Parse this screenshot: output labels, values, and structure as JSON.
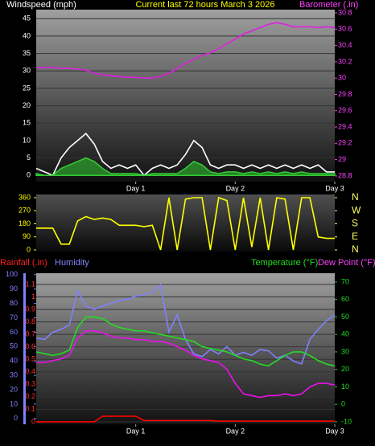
{
  "chart_data": [
    {
      "type": "line",
      "title": "Current last 72 hours March 3 2026",
      "y_label": "Windspeed (mph)",
      "y2_label": "Barometer (.in)",
      "x": [
        0,
        2,
        4,
        6,
        8,
        10,
        12,
        14,
        16,
        18,
        20,
        22,
        24,
        26,
        28,
        30,
        32,
        34,
        36,
        38,
        40,
        42,
        44,
        46,
        48,
        50,
        52,
        54,
        56,
        58,
        60,
        62,
        64,
        66,
        68,
        70,
        72
      ],
      "xlim": [
        0,
        72
      ],
      "xticks": [
        {
          "value": 24,
          "label": "Day 1"
        },
        {
          "value": 48,
          "label": "Day 2"
        },
        {
          "value": 72,
          "label": "Day 3"
        }
      ],
      "ylim": [
        -1.8,
        47.6
      ],
      "yticks": [
        0,
        5,
        10,
        15,
        20,
        25,
        30,
        35,
        40,
        45
      ],
      "y2lim": [
        28.73,
        30.84
      ],
      "y2ticks": [
        28.8,
        29,
        29.2,
        29.4,
        29.6,
        29.8,
        30,
        30.2,
        30.4,
        30.6,
        30.8
      ],
      "grid": true,
      "series": [
        {
          "color": "#ffffff",
          "values": [
            2,
            1,
            0,
            5,
            8,
            10,
            12,
            9,
            4,
            2,
            3,
            2,
            3,
            0,
            2,
            3,
            2,
            3,
            6,
            10,
            8,
            3,
            2,
            3,
            3,
            2,
            3,
            2,
            3,
            2,
            3,
            2,
            3,
            2,
            3,
            1,
            1
          ]
        },
        {
          "color": "#33cc33",
          "area": true,
          "values": [
            0.5,
            0,
            0,
            2,
            3,
            4,
            5,
            4,
            2,
            0.5,
            0.5,
            0.5,
            0.5,
            0,
            0.5,
            0.5,
            0.5,
            0.5,
            2,
            4,
            3,
            1,
            0.5,
            1,
            1,
            0.5,
            1,
            0.5,
            1,
            0.5,
            1,
            0.5,
            1,
            0.5,
            0.5,
            0.5,
            0.5
          ]
        },
        {
          "color": "#e020e0",
          "axis": "y2",
          "values": [
            30.13,
            30.13,
            30.13,
            30.12,
            30.12,
            30.11,
            30.1,
            30.06,
            30.04,
            30.03,
            30.02,
            30.01,
            30.01,
            30.0,
            30.0,
            30.02,
            30.06,
            30.12,
            30.18,
            30.23,
            30.28,
            30.31,
            30.36,
            30.42,
            30.48,
            30.54,
            30.58,
            30.62,
            30.66,
            30.68,
            30.66,
            30.63,
            30.63,
            30.63,
            30.62,
            30.63,
            30.62
          ]
        }
      ]
    },
    {
      "type": "line",
      "x": [
        0,
        2,
        4,
        6,
        8,
        10,
        12,
        14,
        16,
        18,
        20,
        22,
        24,
        26,
        28,
        30,
        32,
        34,
        36,
        38,
        40,
        42,
        44,
        46,
        48,
        50,
        52,
        54,
        56,
        58,
        60,
        62,
        64,
        66,
        68,
        70,
        72
      ],
      "xlim": [
        0,
        72
      ],
      "ylim": [
        -11,
        382
      ],
      "yticks": [
        0,
        90,
        180,
        270,
        360
      ],
      "y2lim": [
        -11,
        382
      ],
      "y2ticks": [
        {
          "value": 0,
          "label": "N"
        },
        {
          "value": 90,
          "label": "E"
        },
        {
          "value": 180,
          "label": "S"
        },
        {
          "value": 270,
          "label": "W"
        },
        {
          "value": 360,
          "label": "N"
        }
      ],
      "grid": false,
      "series": [
        {
          "color": "#ffff00",
          "values": [
            150,
            150,
            150,
            40,
            40,
            200,
            230,
            210,
            220,
            210,
            170,
            170,
            170,
            160,
            170,
            0,
            360,
            0,
            350,
            360,
            360,
            0,
            360,
            340,
            0,
            360,
            20,
            360,
            0,
            360,
            350,
            0,
            360,
            360,
            90,
            80,
            80
          ]
        }
      ]
    },
    {
      "type": "line",
      "x": [
        0,
        2,
        4,
        6,
        8,
        10,
        12,
        14,
        16,
        18,
        20,
        22,
        24,
        26,
        28,
        30,
        32,
        34,
        36,
        38,
        40,
        42,
        44,
        46,
        48,
        50,
        52,
        54,
        56,
        58,
        60,
        62,
        64,
        66,
        68,
        70,
        72
      ],
      "xlim": [
        0,
        72
      ],
      "xticks": [
        {
          "value": 24,
          "label": "Day 1"
        },
        {
          "value": 48,
          "label": "Day 2"
        },
        {
          "value": 72,
          "label": "Day 3"
        }
      ],
      "ylim": [
        -0.02,
        1.19
      ],
      "yticks": [
        0,
        0.1,
        0.2,
        0.3,
        0.4,
        0.5,
        0.6,
        0.7,
        0.8,
        0.9,
        1,
        1.1
      ],
      "y2lim": [
        -11.4,
        75
      ],
      "y2ticks": [
        -10,
        0,
        10,
        20,
        30,
        40,
        50,
        60,
        70
      ],
      "y3lim": [
        -4,
        101
      ],
      "y3ticks": [
        0,
        10,
        20,
        30,
        40,
        50,
        60,
        70,
        80,
        90,
        100
      ],
      "grid": true,
      "series": [
        {
          "name": "Rainfall (.in)",
          "color": "#ff0000",
          "values": [
            0,
            0,
            0,
            0,
            0,
            0,
            0,
            0,
            0.045,
            0.045,
            0.045,
            0.045,
            0.045,
            0.01,
            0.01,
            0.01,
            0.01,
            0.01,
            0.01,
            0.01,
            0.01,
            0.01,
            0.005,
            0.005,
            0.005,
            0.005,
            0.005,
            0.005,
            0.005,
            0.005,
            0.005,
            0.005,
            0.005,
            0.005,
            0.005,
            0.005,
            0.005
          ]
        },
        {
          "name": "Humidity",
          "color": "#8080ff",
          "axis": "y3",
          "values": [
            56,
            55,
            60,
            62,
            65,
            89,
            78,
            76,
            78,
            80,
            82,
            83,
            85,
            86,
            88,
            93,
            60,
            72,
            55,
            45,
            43,
            48,
            45,
            50,
            44,
            46,
            44,
            48,
            47,
            42,
            44,
            40,
            38,
            55,
            62,
            68,
            72
          ]
        },
        {
          "name": "Temperature (°F)",
          "color": "#22dd22",
          "axis": "y2",
          "values": [
            30,
            29,
            28,
            29,
            31,
            44,
            50,
            50,
            49,
            46,
            44,
            43,
            42,
            42,
            41,
            40,
            39,
            38,
            37,
            36,
            33,
            32,
            31,
            30,
            28,
            26,
            25,
            23,
            22,
            25,
            28,
            30,
            30,
            28,
            25,
            23,
            22
          ]
        },
        {
          "name": "Dew Point (°F)",
          "color": "#ee10ee",
          "axis": "y2",
          "values": [
            24,
            24,
            25,
            26,
            28,
            38,
            42,
            42,
            41,
            39,
            38,
            38,
            37,
            37,
            36,
            36,
            35,
            33,
            31,
            28,
            26,
            25,
            24,
            20,
            12,
            6,
            5,
            4,
            5,
            5,
            6,
            5,
            6,
            10,
            12,
            12,
            11
          ]
        }
      ]
    }
  ]
}
